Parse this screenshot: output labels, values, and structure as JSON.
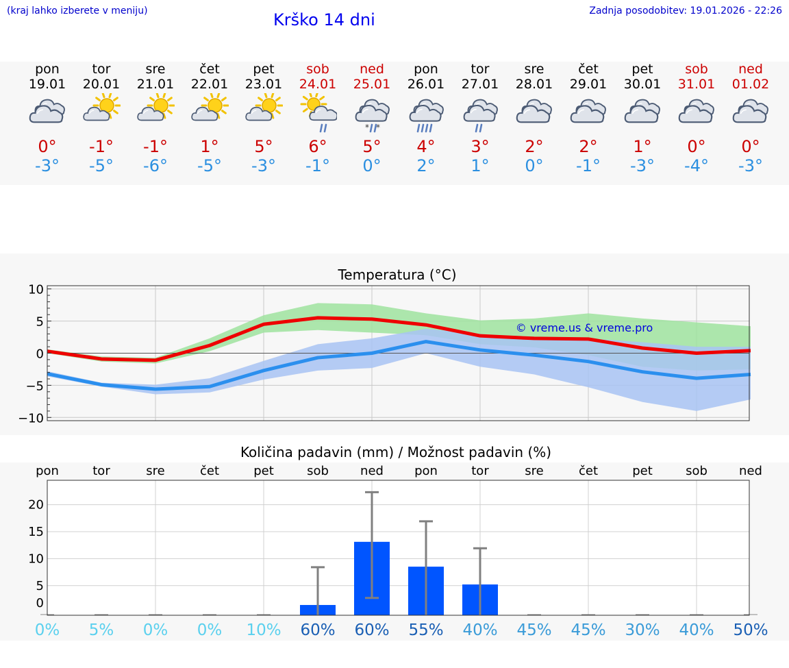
{
  "header": {
    "menu_hint": "(kraj lahko izberete v meniju)",
    "title": "Krško 14 dni",
    "last_update": "Zadnja posodobitev: 19.01.2026 - 22:26"
  },
  "days": [
    {
      "name": "pon",
      "date": "19.01",
      "weekend": false,
      "icon": "cloudy-icon",
      "tmax": "0°",
      "tmin": "-3°"
    },
    {
      "name": "tor",
      "date": "20.01",
      "weekend": false,
      "icon": "partly-sunny-icon",
      "tmax": "-1°",
      "tmin": "-5°"
    },
    {
      "name": "sre",
      "date": "21.01",
      "weekend": false,
      "icon": "partly-sunny-icon",
      "tmax": "-1°",
      "tmin": "-6°"
    },
    {
      "name": "čet",
      "date": "22.01",
      "weekend": false,
      "icon": "partly-sunny-icon",
      "tmax": "1°",
      "tmin": "-5°"
    },
    {
      "name": "pet",
      "date": "23.01",
      "weekend": false,
      "icon": "partly-sunny-icon",
      "tmax": "5°",
      "tmin": "-3°"
    },
    {
      "name": "sob",
      "date": "24.01",
      "weekend": true,
      "icon": "sun-cloud-rain-icon",
      "tmax": "6°",
      "tmin": "-1°"
    },
    {
      "name": "ned",
      "date": "25.01",
      "weekend": true,
      "icon": "cloud-sleet-icon",
      "tmax": "5°",
      "tmin": "0°"
    },
    {
      "name": "pon",
      "date": "26.01",
      "weekend": false,
      "icon": "cloud-heavy-rain-icon",
      "tmax": "4°",
      "tmin": "2°"
    },
    {
      "name": "tor",
      "date": "27.01",
      "weekend": false,
      "icon": "cloud-rain-icon",
      "tmax": "3°",
      "tmin": "1°"
    },
    {
      "name": "sre",
      "date": "28.01",
      "weekend": false,
      "icon": "cloudy-icon",
      "tmax": "2°",
      "tmin": "0°"
    },
    {
      "name": "čet",
      "date": "29.01",
      "weekend": false,
      "icon": "cloudy-icon",
      "tmax": "2°",
      "tmin": "-1°"
    },
    {
      "name": "pet",
      "date": "30.01",
      "weekend": false,
      "icon": "cloudy-icon",
      "tmax": "1°",
      "tmin": "-3°"
    },
    {
      "name": "sob",
      "date": "31.01",
      "weekend": true,
      "icon": "cloudy-icon",
      "tmax": "0°",
      "tmin": "-4°"
    },
    {
      "name": "ned",
      "date": "01.02",
      "weekend": true,
      "icon": "cloudy-icon",
      "tmax": "0°",
      "tmin": "-3°"
    }
  ],
  "colors": {
    "max_line": "#ee0000",
    "min_line": "#2b8fee",
    "max_band": "#9fe39f",
    "min_band": "#a8c3f3",
    "bar": "#0055ff",
    "error_bar": "#808080",
    "weekend": "#cc0000",
    "link": "#0000cc"
  },
  "chart_data": [
    {
      "type": "line",
      "title": "Temperatura (°C)",
      "watermark": "© vreme.us & vreme.pro",
      "x": [
        0,
        1,
        2,
        3,
        4,
        5,
        6,
        7,
        8,
        9,
        10,
        11,
        12,
        13
      ],
      "ylim": [
        -10.5,
        10.5
      ],
      "yticks": [
        "10",
        "5",
        "0",
        "−5",
        "−10"
      ],
      "ytick_values": [
        10,
        5,
        0,
        -5,
        -10
      ],
      "series": [
        {
          "name": "max",
          "values": [
            0.3,
            -0.9,
            -1.1,
            1.2,
            4.5,
            5.5,
            5.3,
            4.4,
            2.7,
            2.3,
            2.2,
            0.8,
            0.0,
            0.4
          ]
        },
        {
          "name": "min",
          "values": [
            -3.2,
            -4.9,
            -5.6,
            -5.2,
            -2.7,
            -0.7,
            0.0,
            1.8,
            0.5,
            -0.3,
            -1.3,
            -2.9,
            -3.9,
            -3.3
          ]
        },
        {
          "name": "max_band_low",
          "values": [
            0.0,
            -1.3,
            -1.6,
            0.3,
            3.2,
            3.6,
            3.2,
            2.8,
            1.4,
            0.9,
            -0.3,
            -2.1,
            -2.7,
            -2.5
          ]
        },
        {
          "name": "max_band_high",
          "values": [
            0.6,
            -0.5,
            -0.7,
            2.3,
            5.9,
            7.8,
            7.6,
            6.2,
            5.1,
            5.4,
            6.2,
            5.4,
            4.8,
            4.2
          ]
        },
        {
          "name": "min_band_low",
          "values": [
            -3.6,
            -5.2,
            -6.4,
            -6.1,
            -4.1,
            -2.7,
            -2.3,
            0.0,
            -2.1,
            -3.3,
            -5.3,
            -7.6,
            -9.0,
            -7.2
          ]
        },
        {
          "name": "min_band_high",
          "values": [
            -2.8,
            -4.6,
            -4.9,
            -3.9,
            -1.2,
            1.4,
            2.3,
            3.8,
            3.0,
            2.1,
            2.3,
            1.7,
            1.0,
            1.0
          ]
        }
      ]
    },
    {
      "type": "bar",
      "title": "Količina padavin (mm) / Možnost padavin (%)",
      "categories": [
        "pon",
        "tor",
        "sre",
        "čet",
        "pet",
        "sob",
        "ned",
        "pon",
        "tor",
        "sre",
        "čet",
        "pet",
        "sob",
        "ned"
      ],
      "values": [
        0,
        0,
        0,
        0,
        0,
        0.4,
        12.1,
        7.5,
        4.2,
        0,
        0,
        0,
        0,
        0
      ],
      "error_high": [
        0,
        0,
        0,
        0,
        0,
        7.4,
        21.3,
        15.9,
        10.9,
        0,
        0,
        0,
        0,
        0
      ],
      "error_low": [
        0,
        0,
        0,
        0,
        0,
        0,
        1.7,
        0,
        0,
        0,
        0,
        0,
        0,
        0
      ],
      "ylim": [
        -1.5,
        23.5
      ],
      "yticks": [
        "20",
        "15",
        "10",
        "5",
        "0"
      ],
      "ytick_values": [
        20,
        15,
        10,
        5,
        0
      ],
      "probabilities": [
        "0%",
        "5%",
        "0%",
        "0%",
        "10%",
        "60%",
        "60%",
        "55%",
        "40%",
        "45%",
        "45%",
        "30%",
        "40%",
        "50%"
      ],
      "probability_values": [
        0,
        5,
        0,
        0,
        10,
        60,
        60,
        55,
        40,
        45,
        45,
        30,
        40,
        50
      ]
    }
  ]
}
